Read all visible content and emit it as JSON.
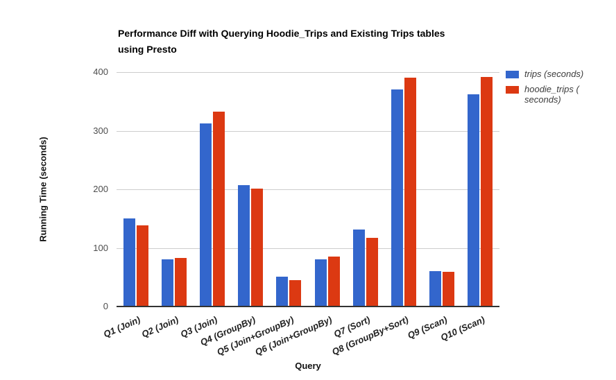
{
  "header": {
    "title_lines": [
      "Performance Diff with Querying Hoodie_Trips and Existing Trips tables",
      "using Presto"
    ]
  },
  "chart_data": {
    "type": "bar",
    "title": "Performance Diff with Querying Hoodie_Trips and Existing Trips tables using Presto",
    "xlabel": "Query",
    "ylabel": "Running Time (seconds)",
    "ylim": [
      0,
      400
    ],
    "yticks": [
      0,
      100,
      200,
      300,
      400
    ],
    "grid": true,
    "legend_position": "right",
    "categories": [
      "Q1 (Join)",
      "Q2 (Join)",
      "Q3 (Join)",
      "Q4 (GroupBy)",
      "Q5 (Join+GroupBy)",
      "Q6 (Join+GroupBy)",
      "Q7 (Sort)",
      "Q8 (GroupBy+Sort)",
      "Q9 (Scan)",
      "Q10 (Scan)"
    ],
    "series": [
      {
        "name": "trips (seconds)",
        "color": "#3366cc",
        "values": [
          150,
          80,
          313,
          207,
          51,
          81,
          131,
          370,
          60,
          362
        ]
      },
      {
        "name": "hoodie_trips ( seconds)",
        "color": "#dc3912",
        "values": [
          138,
          83,
          332,
          201,
          45,
          85,
          117,
          390,
          59,
          392
        ]
      }
    ],
    "colors": {
      "gridline": "#cccccc",
      "axis_line": "#333333",
      "y_tick_label": "#4d4d4d",
      "x_tick_label": "#1f1f1f",
      "legend_text": "#3c3c3c",
      "title": "#000000"
    }
  }
}
